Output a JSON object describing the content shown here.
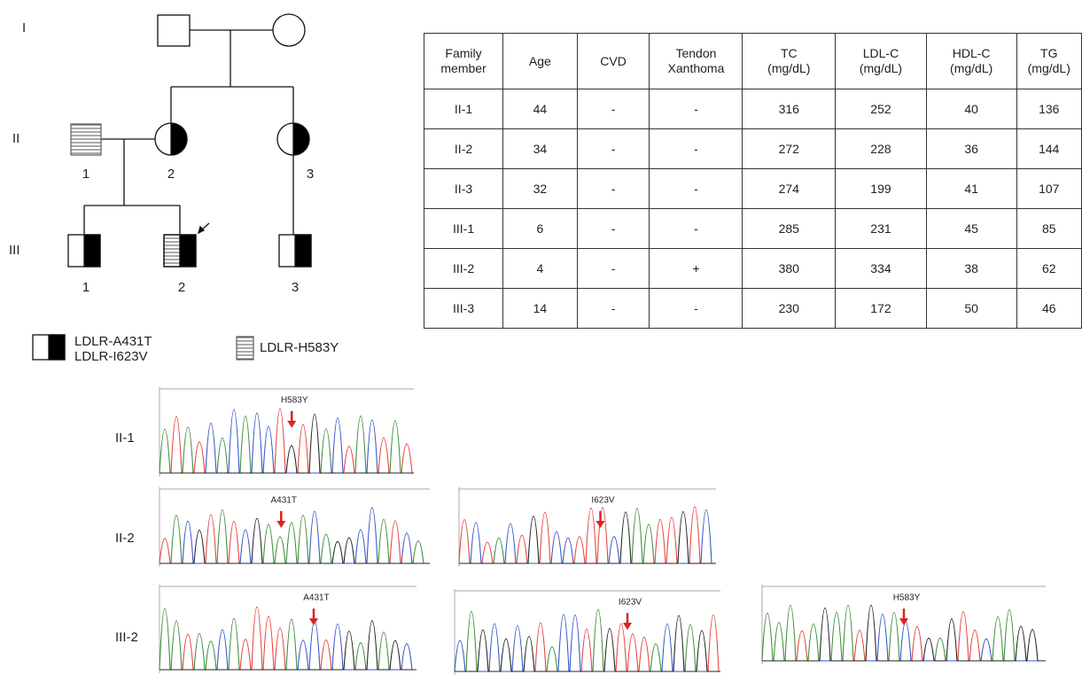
{
  "pedigree": {
    "generations": [
      "I",
      "II",
      "III"
    ],
    "labels": {
      "II": [
        "1",
        "2",
        "3"
      ],
      "III": [
        "1",
        "2",
        "3"
      ]
    }
  },
  "legend": [
    "LDLR-A431T",
    "LDLR-I623V",
    "LDLR-H583Y"
  ],
  "table": {
    "header": [
      "Family member",
      "Age",
      "CVD",
      "Tendon Xanthoma",
      "TC (mg/dL)",
      "LDL-C (mg/dL)",
      "HDL-C (mg/dL)",
      "TG (mg/dL)"
    ],
    "rows": [
      [
        "II-1",
        44,
        "-",
        "-",
        316,
        252,
        40,
        136
      ],
      [
        "II-2",
        34,
        "-",
        "-",
        272,
        228,
        36,
        144
      ],
      [
        "II-3",
        32,
        "-",
        "-",
        274,
        199,
        41,
        107
      ],
      [
        "III-1",
        6,
        "-",
        "-",
        285,
        231,
        45,
        85
      ],
      [
        "III-2",
        4,
        "-",
        "+",
        380,
        334,
        38,
        62
      ],
      [
        "III-3",
        14,
        "-",
        "-",
        230,
        172,
        50,
        46
      ]
    ]
  },
  "sequencing": [
    {
      "sample": "II-1",
      "mutations": [
        "H583Y"
      ]
    },
    {
      "sample": "II-2",
      "mutations": [
        "A431T",
        "I623V"
      ]
    },
    {
      "sample": "III-2",
      "mutations": [
        "A431T",
        "I623V",
        "H583Y"
      ]
    }
  ]
}
